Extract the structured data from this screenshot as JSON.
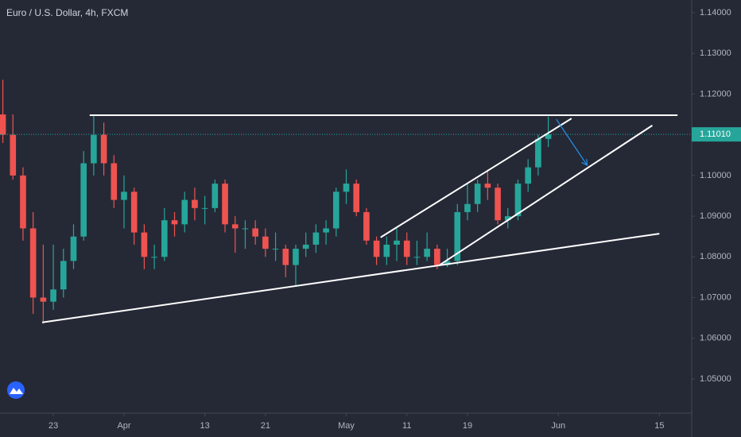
{
  "chart_data": {
    "type": "candlestick",
    "title": "Euro / U.S. Dollar, 4h, FXCM",
    "x": [
      -5,
      -4,
      -3,
      -2,
      -1,
      0,
      1,
      2,
      3,
      4,
      5,
      6,
      7,
      8,
      9,
      10,
      11,
      12,
      13,
      14,
      15,
      16,
      17,
      18,
      19,
      20,
      21,
      22,
      23,
      24,
      25,
      26,
      27,
      28,
      29,
      30,
      31,
      32,
      33,
      34,
      35,
      36,
      37,
      38,
      39,
      40,
      41,
      42,
      43,
      44,
      45,
      46,
      47,
      48,
      49
    ],
    "open": [
      1.115,
      1.11,
      1.1,
      1.087,
      1.07,
      1.069,
      1.072,
      1.079,
      1.085,
      1.103,
      1.11,
      1.103,
      1.094,
      1.096,
      1.086,
      1.08,
      1.08,
      1.089,
      1.088,
      1.094,
      1.092,
      1.092,
      1.098,
      1.088,
      1.087,
      1.087,
      1.085,
      1.082,
      1.082,
      1.078,
      1.082,
      1.083,
      1.086,
      1.087,
      1.096,
      1.098,
      1.091,
      1.084,
      1.08,
      1.083,
      1.084,
      1.08,
      1.08,
      1.082,
      1.078,
      1.079,
      1.091,
      1.093,
      1.098,
      1.097,
      1.089,
      1.09,
      1.098,
      1.102,
      1.109
    ],
    "high": [
      1.1235,
      1.115,
      1.102,
      1.091,
      1.083,
      1.083,
      1.082,
      1.088,
      1.106,
      1.1148,
      1.113,
      1.105,
      1.1,
      1.097,
      1.088,
      1.083,
      1.092,
      1.091,
      1.096,
      1.097,
      1.095,
      1.099,
      1.099,
      1.09,
      1.089,
      1.089,
      1.087,
      1.086,
      1.083,
      1.083,
      1.086,
      1.088,
      1.089,
      1.097,
      1.1015,
      1.099,
      1.092,
      1.085,
      1.085,
      1.087,
      1.086,
      1.084,
      1.086,
      1.083,
      1.082,
      1.093,
      1.098,
      1.099,
      1.101,
      1.098,
      1.092,
      1.099,
      1.104,
      1.11,
      1.1145
    ],
    "low": [
      1.108,
      1.099,
      1.084,
      1.066,
      1.0636,
      1.067,
      1.07,
      1.077,
      1.084,
      1.1,
      1.1,
      1.092,
      1.087,
      1.083,
      1.077,
      1.077,
      1.079,
      1.085,
      1.086,
      1.089,
      1.088,
      1.091,
      1.086,
      1.081,
      1.082,
      1.083,
      1.08,
      1.079,
      1.075,
      1.0727,
      1.08,
      1.081,
      1.083,
      1.085,
      1.093,
      1.09,
      1.083,
      1.078,
      1.078,
      1.079,
      1.078,
      1.078,
      1.079,
      1.077,
      1.0775,
      1.078,
      1.089,
      1.091,
      1.094,
      1.088,
      1.087,
      1.089,
      1.096,
      1.1,
      1.107
    ],
    "close": [
      1.11,
      1.1,
      1.087,
      1.07,
      1.069,
      1.072,
      1.079,
      1.085,
      1.103,
      1.11,
      1.103,
      1.094,
      1.096,
      1.086,
      1.08,
      1.08,
      1.089,
      1.088,
      1.094,
      1.092,
      1.092,
      1.098,
      1.088,
      1.087,
      1.087,
      1.085,
      1.082,
      1.082,
      1.078,
      1.082,
      1.083,
      1.086,
      1.087,
      1.096,
      1.098,
      1.091,
      1.084,
      1.08,
      1.083,
      1.084,
      1.08,
      1.08,
      1.082,
      1.078,
      1.079,
      1.091,
      1.093,
      1.098,
      1.097,
      1.089,
      1.09,
      1.098,
      1.102,
      1.109,
      1.1101
    ],
    "up_color": "#26a69a",
    "down_color": "#ef5350",
    "xlim": [
      -5.28,
      63.2
    ],
    "xticks": [
      {
        "value": 0,
        "label": "23"
      },
      {
        "value": 7,
        "label": "Apr"
      },
      {
        "value": 15,
        "label": "13"
      },
      {
        "value": 21,
        "label": "21"
      },
      {
        "value": 29,
        "label": "May"
      },
      {
        "value": 35,
        "label": "11"
      },
      {
        "value": 41,
        "label": "19"
      },
      {
        "value": 50,
        "label": "Jun"
      },
      {
        "value": 60,
        "label": "15"
      }
    ],
    "ylim": [
      1.0416,
      1.14312
    ],
    "yticks": [
      {
        "value": 1.05,
        "label": "1.05000"
      },
      {
        "value": 1.06,
        "label": "1.06000"
      },
      {
        "value": 1.07,
        "label": "1.07000"
      },
      {
        "value": 1.08,
        "label": "1.08000"
      },
      {
        "value": 1.09,
        "label": "1.09000"
      },
      {
        "value": 1.1,
        "label": "1.10000"
      },
      {
        "value": 1.12,
        "label": "1.12000"
      },
      {
        "value": 1.13,
        "label": "1.13000"
      },
      {
        "value": 1.14,
        "label": "1.14000"
      }
    ],
    "last_price": {
      "value": 1.1101,
      "label": "1.11010",
      "color": "#26a69a"
    },
    "drawings": [
      {
        "x": [
          3.6,
          61.8
        ],
        "y": [
          1.1148,
          1.1148
        ],
        "color": "#ffffff"
      },
      {
        "x": [
          -1.1,
          60.0
        ],
        "y": [
          1.0639,
          1.0857
        ],
        "color": "#ffffff"
      },
      {
        "x": [
          32.4,
          51.3
        ],
        "y": [
          1.0848,
          1.114
        ],
        "color": "#ffffff"
      },
      {
        "x": [
          38.3,
          59.3
        ],
        "y": [
          1.0781,
          1.1123
        ],
        "color": "#ffffff"
      },
      {
        "x": [
          49.8,
          52.8
        ],
        "y": [
          1.1138,
          1.1027
        ],
        "color": "#2196f3",
        "arrow": true
      }
    ]
  }
}
